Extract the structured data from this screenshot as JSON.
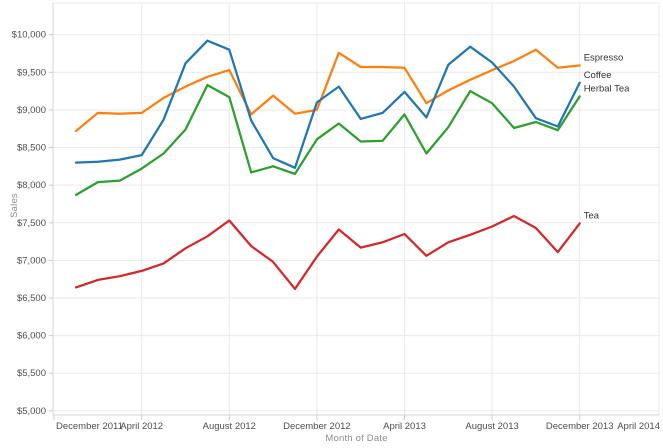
{
  "chart_data": {
    "type": "line",
    "title": "",
    "xlabel": "Month of Date",
    "ylabel": "Sales",
    "grid": true,
    "legend_position": "line-end-labels",
    "ylim": [
      5000,
      10000
    ],
    "y_tick_step": 500,
    "y_tick_format": "$#,###",
    "x": [
      "Jan 2012",
      "Feb 2012",
      "Mar 2012",
      "Apr 2012",
      "May 2012",
      "Jun 2012",
      "Jul 2012",
      "Aug 2012",
      "Sep 2012",
      "Oct 2012",
      "Nov 2012",
      "Dec 2012",
      "Jan 2013",
      "Feb 2013",
      "Mar 2013",
      "Apr 2013",
      "May 2013",
      "Jun 2013",
      "Jul 2013",
      "Aug 2013",
      "Sep 2013",
      "Oct 2013",
      "Nov 2013",
      "Dec 2013"
    ],
    "x_tick_labels": [
      "December 2011",
      "April 2012",
      "August 2012",
      "December 2012",
      "April 2013",
      "August 2013",
      "December 2013",
      "April 2014"
    ],
    "x_tick_month_offsets": [
      -1,
      3,
      7,
      11,
      15,
      19,
      23,
      27
    ],
    "series": [
      {
        "name": "Espresso",
        "color": "#ff7f0e",
        "values": [
          8720,
          8960,
          8950,
          8960,
          9160,
          9310,
          9440,
          9530,
          8940,
          9190,
          8950,
          9000,
          9760,
          9570,
          9570,
          9560,
          9090,
          9260,
          9400,
          9530,
          9650,
          9800,
          9560,
          9590
        ]
      },
      {
        "name": "Coffee",
        "color": "#1f77b4",
        "values": [
          8300,
          8310,
          8340,
          8400,
          8870,
          9620,
          9920,
          9800,
          8860,
          8360,
          8230,
          9100,
          9310,
          8880,
          8960,
          9240,
          8900,
          9600,
          9840,
          9630,
          9310,
          8890,
          8780,
          9360
        ]
      },
      {
        "name": "Herbal Tea",
        "color": "#2ca02c",
        "values": [
          7870,
          8040,
          8060,
          8220,
          8420,
          8740,
          9330,
          9170,
          8170,
          8250,
          8150,
          8610,
          8820,
          8580,
          8590,
          8940,
          8420,
          8770,
          9250,
          9090,
          8760,
          8840,
          8730,
          9180
        ]
      },
      {
        "name": "Tea",
        "color": "#d62728",
        "values": [
          6640,
          6740,
          6790,
          6860,
          6960,
          7160,
          7320,
          7530,
          7190,
          6980,
          6620,
          7050,
          7410,
          7170,
          7240,
          7350,
          7060,
          7240,
          7340,
          7450,
          7590,
          7430,
          7110,
          7490
        ]
      }
    ],
    "colors": {
      "gridline": "#e9e9e9",
      "axis_line": "#d4d4d4",
      "tick_mark": "#c9c9c9",
      "tick_label": "#4e4e4e",
      "axis_title": "#8c8c8c",
      "series_label": "#333333",
      "background": "#ffffff"
    }
  }
}
